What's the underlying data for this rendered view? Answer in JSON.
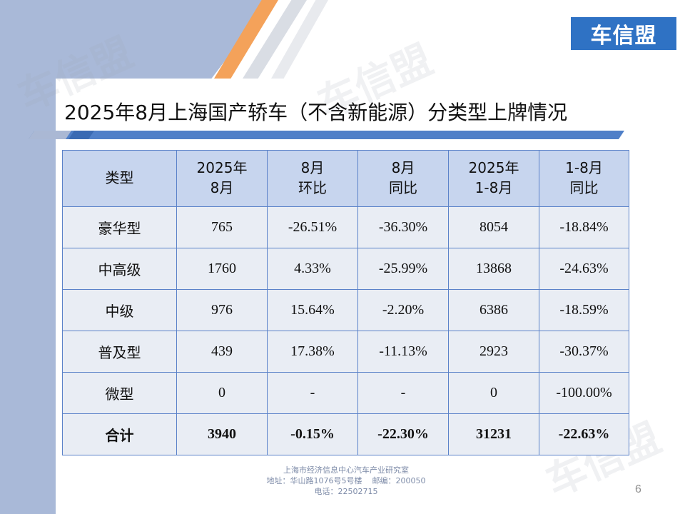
{
  "logo": "车信盟",
  "watermark": "车信盟",
  "title": "2025年8月上海国产轿车（不含新能源）分类型上牌情况",
  "table": {
    "headers": [
      {
        "line1": "类型",
        "line2": ""
      },
      {
        "line1": "2025年",
        "line2": "8月"
      },
      {
        "line1": "8月",
        "line2": "环比"
      },
      {
        "line1": "8月",
        "line2": "同比"
      },
      {
        "line1": "2025年",
        "line2": "1-8月"
      },
      {
        "line1": "1-8月",
        "line2": "同比"
      }
    ],
    "rows": [
      [
        "豪华型",
        "765",
        "-26.51%",
        "-36.30%",
        "8054",
        "-18.84%"
      ],
      [
        "中高级",
        "1760",
        "4.33%",
        "-25.99%",
        "13868",
        "-24.63%"
      ],
      [
        "中级",
        "976",
        "15.64%",
        "-2.20%",
        "6386",
        "-18.59%"
      ],
      [
        "普及型",
        "439",
        "17.38%",
        "-11.13%",
        "2923",
        "-30.37%"
      ],
      [
        "微型",
        "0",
        "-",
        "-",
        "0",
        "-100.00%"
      ],
      [
        "合计",
        "3940",
        "-0.15%",
        "-22.30%",
        "31231",
        "-22.63%"
      ]
    ]
  },
  "footer": {
    "line1": "上海市经济信息中心汽车产业研究室",
    "line2": "地址：华山路1076号5号楼    邮编：200050",
    "line3": "电话：22502715"
  },
  "page_number": "6"
}
